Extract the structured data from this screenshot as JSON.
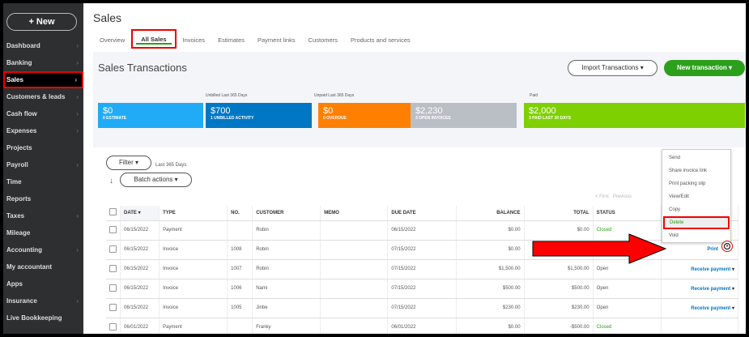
{
  "sidebar": {
    "new_label": "+ New",
    "items": [
      {
        "label": "Dashboard",
        "chev": true
      },
      {
        "label": "Banking",
        "chev": true
      },
      {
        "label": "Sales",
        "chev": true,
        "active": true
      },
      {
        "label": "Customers & leads",
        "chev": true
      },
      {
        "label": "Cash flow",
        "chev": true
      },
      {
        "label": "Expenses",
        "chev": true
      },
      {
        "label": "Projects"
      },
      {
        "label": "Payroll",
        "chev": true
      },
      {
        "label": "Time"
      },
      {
        "label": "Reports"
      },
      {
        "label": "Taxes",
        "chev": true
      },
      {
        "label": "Mileage"
      },
      {
        "label": "Accounting",
        "chev": true
      },
      {
        "label": "My accountant"
      },
      {
        "label": "Apps"
      },
      {
        "label": "Insurance",
        "chev": true
      },
      {
        "label": "Live Bookkeeping"
      }
    ]
  },
  "header": {
    "title": "Sales",
    "tabs": [
      "Overview",
      "All Sales",
      "Invoices",
      "Estimates",
      "Payment links",
      "Customers",
      "Products and services"
    ],
    "active_tab": "All Sales"
  },
  "summary": {
    "title": "Sales Transactions",
    "import_label": "Import Transactions ▾",
    "new_label": "New transaction ▾",
    "captions": {
      "unbilled": "Unbilled Last 365 Days",
      "unpaid": "Unpaid Last 365 Days",
      "paid": "Paid"
    },
    "tiles": [
      {
        "value": "$0",
        "label": "0 ESTIMATE",
        "color": "#21abf6"
      },
      {
        "value": "$700",
        "label": "1 UNBILLED ACTIVITY",
        "color": "#0077c5"
      },
      {
        "value": "$0",
        "label": "0 OVERDUE",
        "color": "#ff8000"
      },
      {
        "value": "$2,230",
        "label": "3 OPEN INVOICES",
        "color": "#babec5"
      },
      {
        "value": "$2,000",
        "label": "3 PAID LAST 30 DAYS",
        "color": "#7fd000"
      }
    ]
  },
  "toolbar": {
    "filter_label": "Filter ▾",
    "filter_range": "Last 365 Days",
    "batch_label": "Batch actions ▾",
    "pager": "< First   Previous"
  },
  "table": {
    "columns": [
      "DATE ▾",
      "TYPE",
      "NO.",
      "CUSTOMER",
      "MEMO",
      "DUE DATE",
      "BALANCE",
      "TOTAL",
      "STATUS",
      ""
    ],
    "rows": [
      [
        "06/15/2022",
        "Payment",
        "",
        "Robin",
        "",
        "06/15/2022",
        "$0.00",
        "$0.00",
        "Closed",
        ""
      ],
      [
        "06/15/2022",
        "Invoice",
        "1008",
        "Robin",
        "",
        "07/15/2022",
        "$0.00",
        "",
        "",
        "Print"
      ],
      [
        "06/15/2022",
        "Invoice",
        "1007",
        "Robin",
        "",
        "07/15/2022",
        "$1,500.00",
        "$1,500.00",
        "Open",
        "Receive payment"
      ],
      [
        "06/15/2022",
        "Invoice",
        "1006",
        "Nami",
        "",
        "07/15/2022",
        "$500.00",
        "$500.00",
        "Open",
        "Receive payment"
      ],
      [
        "06/15/2022",
        "Invoice",
        "1005",
        "Jinbe",
        "",
        "07/15/2022",
        "$230.00",
        "$230.00",
        "Open",
        "Receive payment"
      ],
      [
        "06/01/2022",
        "Payment",
        "",
        "Franky",
        "",
        "06/01/2022",
        "$0.00",
        "-$500.00",
        "Closed",
        ""
      ]
    ]
  },
  "menu": {
    "items": [
      "Send",
      "Share invoice link",
      "Print packing slip",
      "View/Edit",
      "Copy",
      "Delete",
      "Void"
    ],
    "highlighted": "Delete"
  },
  "colors": {
    "accent_green": "#2ca01c",
    "link_blue": "#0077c5",
    "annotation_red": "#e00000"
  }
}
